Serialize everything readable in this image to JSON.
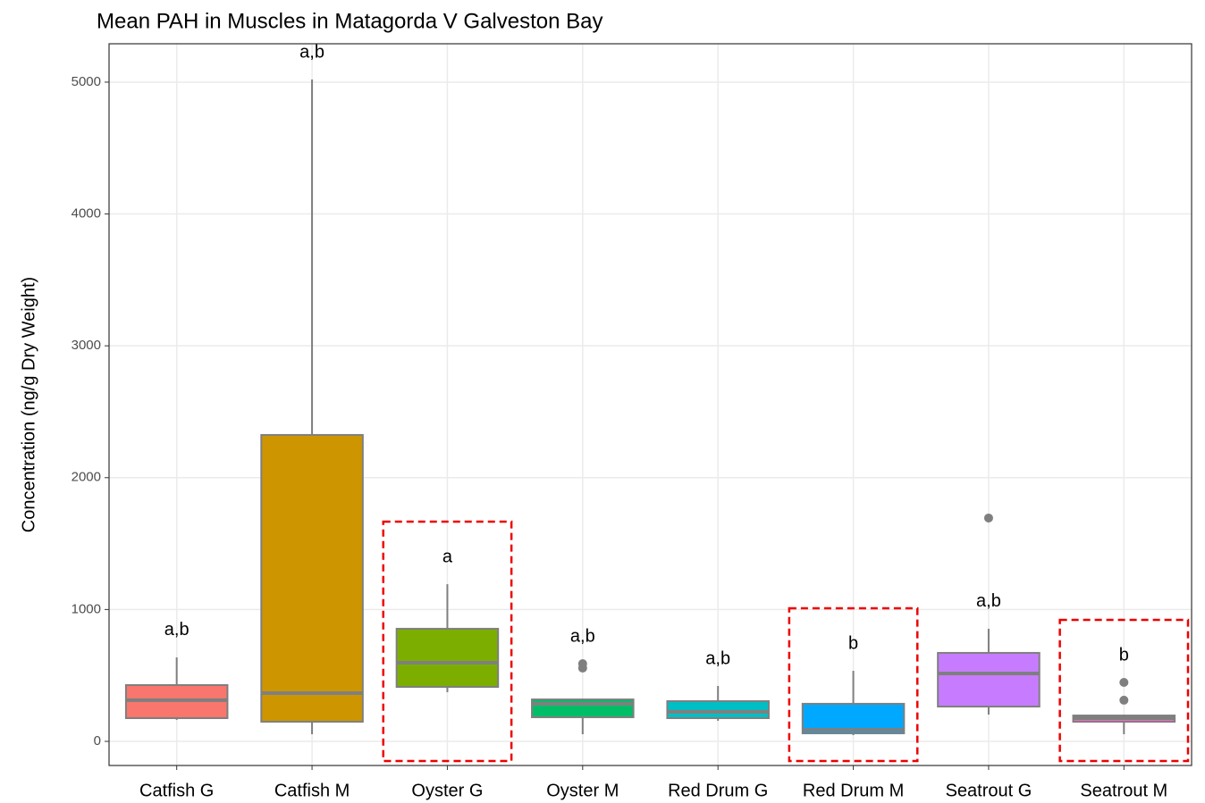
{
  "chart_data": {
    "type": "box",
    "title": "Mean PAH in Muscles in Matagorda V Galveston Bay",
    "y_label": "Concentration (ng/g Dry Weight)",
    "categories": [
      "Catfish G",
      "Catfish M",
      "Oyster G",
      "Oyster M",
      "Red Drum G",
      "Red Drum M",
      "Seatrout G",
      "Seatrout M"
    ],
    "colors": [
      "#F8766D",
      "#CD9600",
      "#7CAE00",
      "#00BE67",
      "#00BFC4",
      "#00A9FF",
      "#C77CFF",
      "#FF61CC"
    ],
    "boxes": [
      {
        "min": 163,
        "q1": 176,
        "median": 312,
        "q3": 427,
        "max": 637,
        "outliers": []
      },
      {
        "min": 54,
        "q1": 149,
        "median": 366,
        "q3": 2324,
        "max": 5020,
        "outliers": []
      },
      {
        "min": 373,
        "q1": 413,
        "median": 596,
        "q3": 854,
        "max": 1192,
        "outliers": []
      },
      {
        "min": 54,
        "q1": 183,
        "median": 285,
        "q3": 318,
        "max": 325,
        "outliers": [
          589,
          556
        ]
      },
      {
        "min": 156,
        "q1": 176,
        "median": 224,
        "q3": 305,
        "max": 420,
        "outliers": []
      },
      {
        "min": 47,
        "q1": 61,
        "median": 88,
        "q3": 285,
        "max": 535,
        "outliers": []
      },
      {
        "min": 203,
        "q1": 264,
        "median": 515,
        "q3": 671,
        "max": 854,
        "outliers": [
          1694
        ]
      },
      {
        "min": 54,
        "q1": 149,
        "median": 176,
        "q3": 196,
        "max": 203,
        "outliers": [
          447,
          312
        ]
      }
    ],
    "annotations": [
      "a,b",
      "a,b",
      "a",
      "a,b",
      "a,b",
      "b",
      "a,b",
      "b"
    ],
    "highlight": [
      2,
      5,
      7
    ],
    "ylim": [
      -183,
      5291
    ],
    "yticks": [
      0,
      1000,
      2000,
      3000,
      4000,
      5000
    ],
    "grid": true
  }
}
